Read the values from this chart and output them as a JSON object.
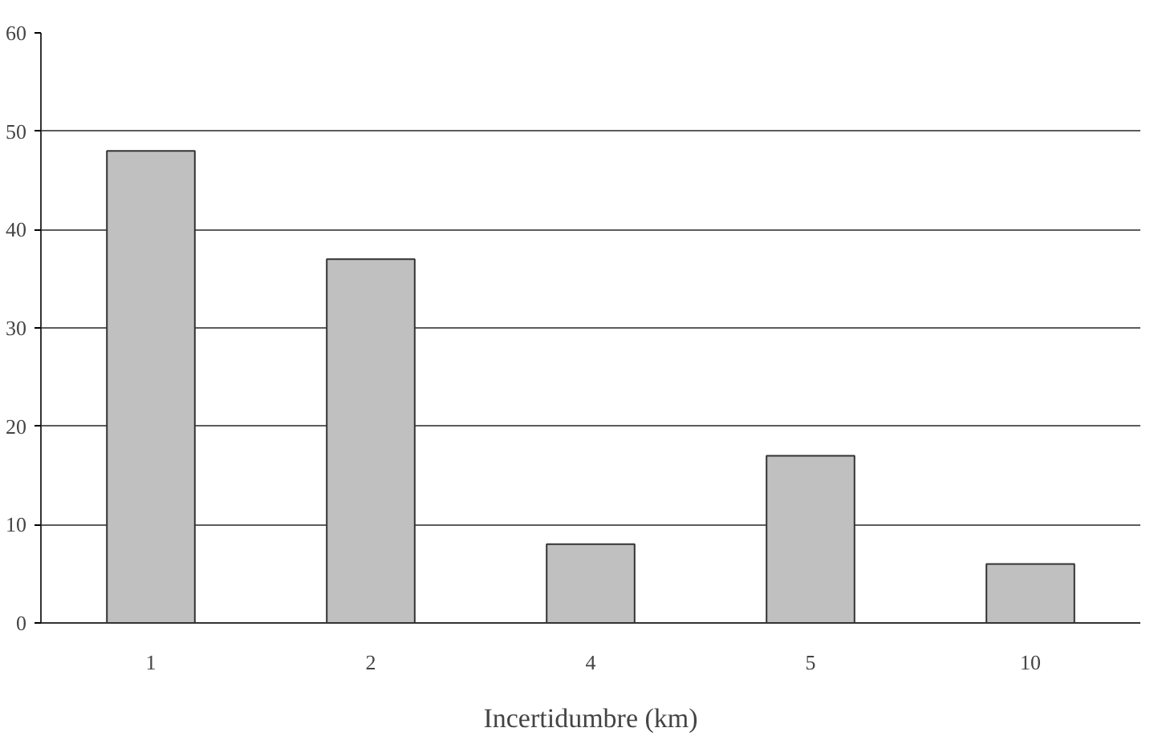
{
  "chart_data": {
    "type": "bar",
    "xlabel": "Incertidumbre (km)",
    "categories": [
      "1",
      "2",
      "4",
      "5",
      "10"
    ],
    "values": [
      48,
      37,
      8,
      17,
      6
    ],
    "color": "#c0c0c0",
    "ylim": [
      0,
      60
    ],
    "yticks": [
      0,
      10,
      20,
      30,
      40,
      50,
      60
    ],
    "grid": "y"
  }
}
